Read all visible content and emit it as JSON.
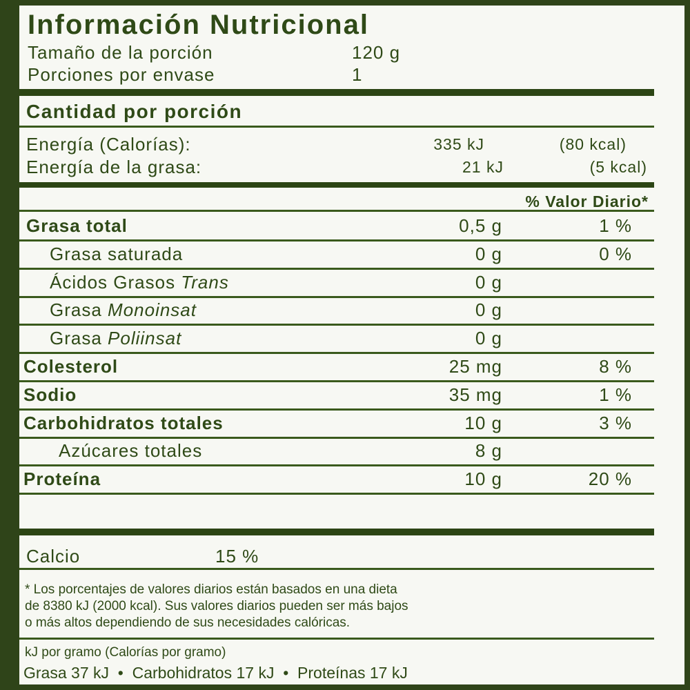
{
  "title": "Información Nutricional",
  "serving": {
    "size_label": "Tamaño de la porción",
    "size_value": "120 g",
    "per_container_label": "Porciones por envase",
    "per_container_value": "1"
  },
  "amount_header": "Cantidad por porción",
  "energy": [
    {
      "label": "Energía (Calorías):",
      "kj": "335 kJ",
      "kcal": "(80 kcal)"
    },
    {
      "label": "Energía de la grasa:",
      "kj": "21 kJ",
      "kcal": "(5 kcal)"
    }
  ],
  "dv_header": "% Valor Diario*",
  "nutrients": [
    {
      "label": "Grasa total",
      "amount": "0,5 g",
      "dv": "1 %"
    },
    {
      "label": "Grasa saturada",
      "amount": "0 g",
      "dv": "0 %"
    },
    {
      "label": "Ácidos Grasos ",
      "label_italic": "Trans",
      "amount": "0 g",
      "dv": ""
    },
    {
      "label": "Grasa ",
      "label_italic": "Monoinsat",
      "amount": "0 g",
      "dv": ""
    },
    {
      "label": "Grasa ",
      "label_italic": "Poliinsat",
      "amount": "0 g",
      "dv": ""
    },
    {
      "label": "Colesterol",
      "amount": "25 mg",
      "dv": "8 %"
    },
    {
      "label": "Sodio",
      "amount": "35 mg",
      "dv": "1 %"
    },
    {
      "label": "Carbohidratos totales",
      "amount": "10 g",
      "dv": "3 %"
    },
    {
      "label": "Azúcares totales",
      "amount": "8 g",
      "dv": ""
    },
    {
      "label": "Proteína",
      "amount": "10 g",
      "dv": "20 %"
    }
  ],
  "calcium": {
    "label": "Calcio",
    "value": "15 %"
  },
  "footnote": [
    "* Los porcentajes de valores diarios están basados en una dieta",
    "de 8380 kJ (2000 kcal). Sus valores diarios pueden ser más bajos",
    "o más altos dependiendo de sus necesidades calóricas."
  ],
  "per_gram": {
    "header": "kJ por gramo (Calorías por gramo)",
    "line": "Grasa 37 kJ  •  Carbohidratos 17 kJ  •  Proteínas 17 kJ"
  },
  "colors": {
    "ink": "#2f4a17",
    "border": "#2f4419",
    "background": "#f7f8f3"
  }
}
